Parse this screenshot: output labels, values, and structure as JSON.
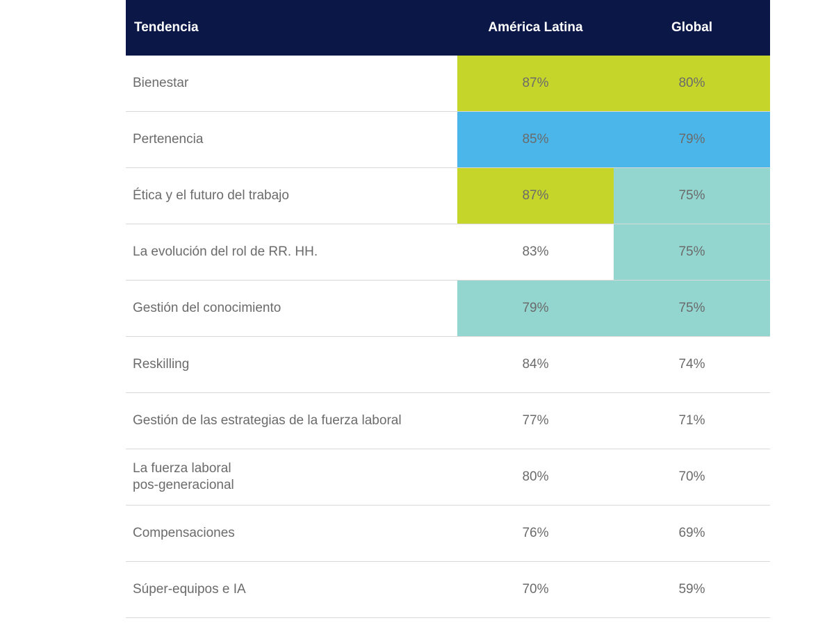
{
  "header": {
    "trend": "Tendencia",
    "latam": "América Latina",
    "global": "Global"
  },
  "rows": [
    {
      "trend": "Bienestar",
      "latam": "87%",
      "global": "80%",
      "latam_color": "#c5d52a",
      "global_color": "#c5d52a"
    },
    {
      "trend": "Pertenencia",
      "latam": "85%",
      "global": "79%",
      "latam_color": "#4ab6ea",
      "global_color": "#4ab6ea"
    },
    {
      "trend": "Ética y el futuro del trabajo",
      "latam": "87%",
      "global": "75%",
      "latam_color": "#c5d52a",
      "global_color": "#93d5cf"
    },
    {
      "trend": "La evolución del rol de RR. HH.",
      "latam": "83%",
      "global": "75%",
      "latam_color": "#ffffff",
      "global_color": "#93d5cf"
    },
    {
      "trend": "Gestión del conocimiento",
      "latam": "79%",
      "global": "75%",
      "latam_color": "#93d5cf",
      "global_color": "#93d5cf"
    },
    {
      "trend": "Reskilling",
      "latam": "84%",
      "global": "74%",
      "latam_color": "#ffffff",
      "global_color": "#ffffff"
    },
    {
      "trend": "Gestión de las estrategias de la fuerza laboral",
      "latam": "77%",
      "global": "71%",
      "latam_color": "#ffffff",
      "global_color": "#ffffff"
    },
    {
      "trend": "La fuerza laboral\npos-generacional",
      "latam": "80%",
      "global": "70%",
      "latam_color": "#ffffff",
      "global_color": "#ffffff"
    },
    {
      "trend": "Compensaciones",
      "latam": "76%",
      "global": "69%",
      "latam_color": "#ffffff",
      "global_color": "#ffffff"
    },
    {
      "trend": "Súper-equipos e IA",
      "latam": "70%",
      "global": "59%",
      "latam_color": "#ffffff",
      "global_color": "#ffffff"
    }
  ],
  "colors": {
    "header_bg": "#0b1747",
    "green": "#c5d52a",
    "blue": "#4ab6ea",
    "teal": "#93d5cf"
  }
}
